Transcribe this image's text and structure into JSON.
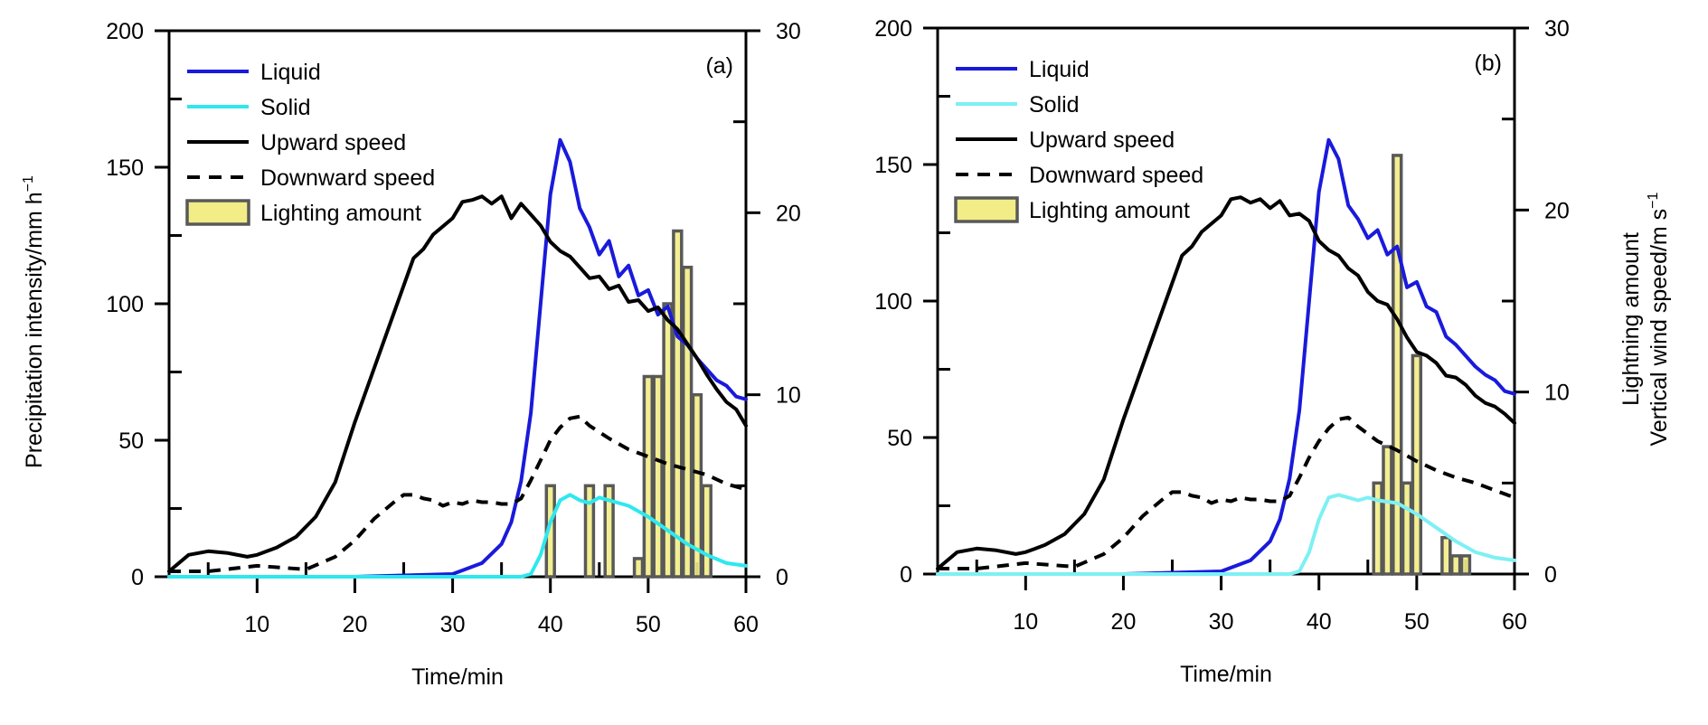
{
  "figure": {
    "left_ytitle": "Precipitation intensity/mm h",
    "left_ytitle_sup": "−1",
    "right_ytitle_line1": "Lightning amount",
    "right_ytitle_line2": "Vertical wind speed/m s",
    "right_ytitle_sup": "−1"
  },
  "chart_data": [
    {
      "type": "line",
      "panel_label": "(a)",
      "xlabel": "Time/min",
      "xlim": [
        1,
        60
      ],
      "xticks": [
        10,
        20,
        30,
        40,
        50,
        60
      ],
      "ylim_left": [
        0,
        200
      ],
      "yticks_left": [
        0,
        50,
        100,
        150,
        200
      ],
      "ylim_right": [
        0,
        30
      ],
      "yticks_right": [
        0,
        10,
        20,
        30
      ],
      "grid": false,
      "legend_position": "top-left",
      "colors": {
        "liquid": "#1a1adb",
        "solid": "#2ee8ee",
        "wind": "#000000",
        "bar_fill": "#f2ed86",
        "bar_stroke": "#595959"
      },
      "legend": [
        "Liquid",
        "Solid",
        "Upward speed",
        "Downward speed",
        "Lighting amount"
      ],
      "series": [
        {
          "name": "Liquid",
          "axis": "left",
          "style": "solid",
          "x": [
            1,
            10,
            20,
            30,
            33,
            35,
            36,
            37,
            38,
            39,
            40,
            41,
            42,
            43,
            44,
            45,
            46,
            47,
            48,
            49,
            50,
            51,
            52,
            53,
            54,
            55,
            56,
            57,
            58,
            59,
            60
          ],
          "y": [
            0,
            0,
            0,
            1,
            5,
            12,
            20,
            35,
            60,
            100,
            140,
            160,
            152,
            135,
            128,
            118,
            123,
            110,
            114,
            103,
            105,
            96,
            99,
            88,
            85,
            80,
            76,
            72,
            70,
            66,
            65
          ]
        },
        {
          "name": "Solid",
          "axis": "left",
          "style": "solid",
          "x": [
            1,
            20,
            37,
            38,
            39,
            40,
            41,
            42,
            43,
            44,
            45,
            46,
            48,
            50,
            52,
            54,
            56,
            58,
            60
          ],
          "y": [
            0,
            0,
            0,
            1,
            8,
            20,
            28,
            30,
            28,
            27,
            29,
            28,
            26,
            22,
            17,
            12,
            8,
            5,
            4
          ]
        },
        {
          "name": "Upward speed",
          "axis": "right",
          "style": "solid",
          "x": [
            1,
            3,
            5,
            7,
            9,
            10,
            12,
            14,
            16,
            18,
            20,
            22,
            24,
            26,
            27,
            28,
            30,
            31,
            32,
            33,
            34,
            35,
            36,
            37,
            38,
            39,
            40,
            41,
            42,
            43,
            44,
            45,
            46,
            47,
            48,
            49,
            50,
            51,
            52,
            53,
            54,
            55,
            56,
            57,
            58,
            59,
            60
          ],
          "y": [
            0.3,
            1.2,
            1.4,
            1.3,
            1.1,
            1.2,
            1.6,
            2.2,
            3.3,
            5.2,
            8.5,
            11.5,
            14.5,
            17.5,
            18.0,
            18.8,
            19.7,
            20.6,
            20.7,
            20.9,
            20.5,
            20.9,
            19.7,
            20.5,
            19.9,
            19.3,
            18.4,
            17.9,
            17.6,
            17.0,
            16.4,
            16.5,
            15.8,
            16.0,
            15.1,
            15.2,
            14.6,
            14.8,
            14.1,
            13.6,
            12.8,
            12.0,
            11.1,
            10.3,
            9.6,
            9.2,
            8.3
          ]
        },
        {
          "name": "Downward speed",
          "axis": "right",
          "style": "dashed",
          "x": [
            1,
            5,
            10,
            15,
            18,
            20,
            22,
            24,
            25,
            26,
            27,
            28,
            29,
            30,
            31,
            32,
            33,
            34,
            35,
            36,
            37,
            38,
            39,
            40,
            41,
            42,
            43,
            44,
            46,
            48,
            50,
            52,
            54,
            56,
            58,
            60
          ],
          "y": [
            0.3,
            0.3,
            0.6,
            0.4,
            1.1,
            2.0,
            3.2,
            4.1,
            4.5,
            4.5,
            4.3,
            4.2,
            3.9,
            4.1,
            4.0,
            4.2,
            4.1,
            4.1,
            4.0,
            4.0,
            4.3,
            5.3,
            6.4,
            7.5,
            8.2,
            8.7,
            8.8,
            8.3,
            7.6,
            7.0,
            6.6,
            6.2,
            5.9,
            5.6,
            5.1,
            4.8
          ]
        },
        {
          "name": "Lighting amount",
          "axis": "right",
          "type": "bar",
          "x": [
            40,
            44,
            46,
            49,
            50,
            51,
            52,
            53,
            54,
            55,
            56
          ],
          "values": [
            5,
            5,
            5,
            1,
            11,
            11,
            15,
            19,
            17,
            10,
            5
          ]
        }
      ]
    },
    {
      "type": "line",
      "panel_label": "(b)",
      "xlabel": "Time/min",
      "xlim": [
        1,
        60
      ],
      "xticks": [
        10,
        20,
        30,
        40,
        50,
        60
      ],
      "ylim_left": [
        0,
        200
      ],
      "yticks_left": [
        0,
        50,
        100,
        150,
        200
      ],
      "ylim_right": [
        0,
        30
      ],
      "yticks_right": [
        0,
        10,
        20,
        30
      ],
      "grid": false,
      "legend_position": "top-left",
      "colors": {
        "liquid": "#1a1adb",
        "solid": "#7ef0f4",
        "wind": "#000000",
        "bar_fill": "#f2ed86",
        "bar_stroke": "#595959"
      },
      "legend": [
        "Liquid",
        "Solid",
        "Upward speed",
        "Downward speed",
        "Lighting amount"
      ],
      "series": [
        {
          "name": "Liquid",
          "axis": "left",
          "style": "solid",
          "x": [
            1,
            10,
            20,
            30,
            33,
            35,
            36,
            37,
            38,
            39,
            40,
            41,
            42,
            43,
            44,
            45,
            46,
            47,
            48,
            49,
            50,
            51,
            52,
            53,
            54,
            55,
            56,
            57,
            58,
            59,
            60
          ],
          "y": [
            0,
            0,
            0,
            1,
            5,
            12,
            20,
            35,
            60,
            100,
            140,
            159,
            152,
            135,
            130,
            123,
            126,
            117,
            120,
            105,
            107,
            98,
            96,
            87,
            84,
            80,
            76,
            73,
            71,
            67,
            66
          ]
        },
        {
          "name": "Solid",
          "axis": "left",
          "style": "solid",
          "x": [
            1,
            20,
            37,
            38,
            39,
            40,
            41,
            42,
            43,
            44,
            45,
            46,
            48,
            50,
            52,
            54,
            56,
            58,
            60
          ],
          "y": [
            0,
            0,
            0,
            1,
            8,
            20,
            28,
            29,
            28,
            27,
            28,
            27,
            26,
            22,
            17,
            12,
            8,
            6,
            5
          ]
        },
        {
          "name": "Upward speed",
          "axis": "right",
          "style": "solid",
          "x": [
            1,
            3,
            5,
            7,
            9,
            10,
            12,
            14,
            16,
            18,
            20,
            22,
            24,
            26,
            27,
            28,
            30,
            31,
            32,
            33,
            34,
            35,
            36,
            37,
            38,
            39,
            40,
            41,
            42,
            43,
            44,
            45,
            46,
            47,
            48,
            49,
            50,
            51,
            52,
            53,
            54,
            55,
            56,
            57,
            58,
            59,
            60
          ],
          "y": [
            0.3,
            1.2,
            1.4,
            1.3,
            1.1,
            1.2,
            1.6,
            2.2,
            3.3,
            5.2,
            8.5,
            11.5,
            14.5,
            17.5,
            18.0,
            18.8,
            19.7,
            20.6,
            20.7,
            20.4,
            20.6,
            20.1,
            20.5,
            19.7,
            19.8,
            19.4,
            18.3,
            17.8,
            17.5,
            16.8,
            16.4,
            15.5,
            15.0,
            14.8,
            14.0,
            13.0,
            12.2,
            12.0,
            11.6,
            10.9,
            10.8,
            10.4,
            9.8,
            9.4,
            9.2,
            8.8,
            8.3
          ]
        },
        {
          "name": "Downward speed",
          "axis": "right",
          "style": "dashed",
          "x": [
            1,
            5,
            10,
            15,
            18,
            20,
            22,
            24,
            25,
            26,
            27,
            28,
            29,
            30,
            31,
            32,
            33,
            34,
            35,
            36,
            37,
            38,
            39,
            40,
            41,
            42,
            43,
            44,
            46,
            48,
            50,
            52,
            54,
            56,
            58,
            60
          ],
          "y": [
            0.3,
            0.3,
            0.6,
            0.4,
            1.1,
            2.0,
            3.2,
            4.1,
            4.5,
            4.5,
            4.3,
            4.2,
            3.9,
            4.1,
            4.0,
            4.2,
            4.1,
            4.1,
            4.0,
            4.0,
            4.3,
            5.3,
            6.4,
            7.3,
            8.0,
            8.5,
            8.6,
            8.1,
            7.3,
            6.8,
            6.2,
            5.7,
            5.3,
            5.0,
            4.6,
            4.2
          ]
        },
        {
          "name": "Lighting amount",
          "axis": "right",
          "type": "bar",
          "x": [
            46,
            47,
            48,
            49,
            50,
            53,
            54,
            55
          ],
          "values": [
            5,
            7,
            23,
            5,
            12,
            2,
            1,
            1
          ]
        }
      ]
    }
  ]
}
